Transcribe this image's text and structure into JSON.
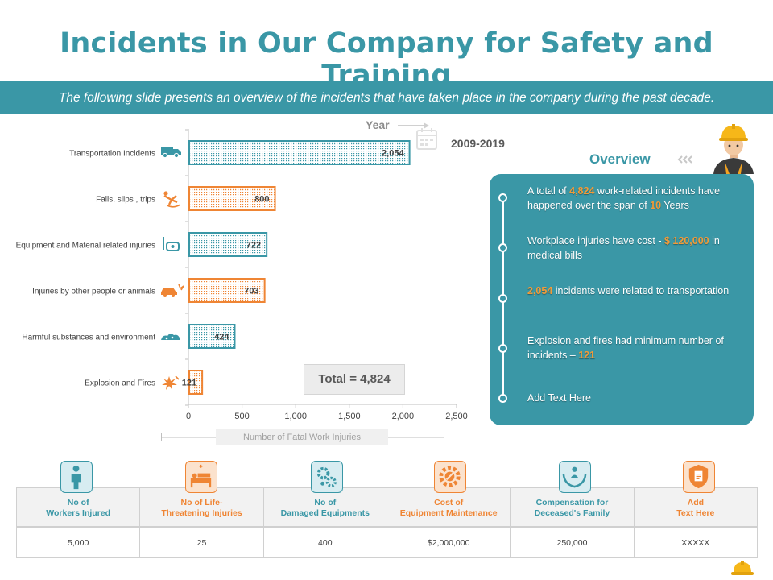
{
  "title": "Incidents in Our Company for Safety and Training",
  "subtitle": "The following slide presents an overview of the incidents that have taken place in the company during the past decade.",
  "year_label": "Year",
  "year_range": "2009-2019",
  "total_label": "Total = 4,824",
  "chart_data": {
    "type": "bar",
    "orientation": "horizontal",
    "categories": [
      "Transportation Incidents",
      "Falls, slips , trips",
      "Equipment and Material related injuries",
      "Injuries by other people or animals",
      "Harmful substances and environment",
      "Explosion and Fires"
    ],
    "values": [
      2054,
      800,
      722,
      703,
      424,
      121
    ],
    "value_labels": [
      "2,054",
      "800",
      "722",
      "703",
      "424",
      "121"
    ],
    "bar_colors": [
      "#3a97a6",
      "#ef8534",
      "#3a97a6",
      "#ef8534",
      "#3a97a6",
      "#ef8534"
    ],
    "icons": [
      "truck-icon",
      "falling-person-icon",
      "equipment-icon",
      "accident-car-icon",
      "hazard-cloud-icon",
      "explosion-icon"
    ],
    "xlabel": "Number of Fatal Work Injuries",
    "xlim": [
      0,
      2500
    ],
    "xticks": [
      0,
      500,
      1000,
      1500,
      2000,
      2500
    ],
    "xtick_labels": [
      "0",
      "500",
      "1,000",
      "1,500",
      "2,000",
      "2,500"
    ]
  },
  "overview": {
    "title": "Overview",
    "items": [
      {
        "pre": "A total of ",
        "hl": "4,824",
        "mid": " work-related incidents have happened over the span of ",
        "hl2": "10",
        "post": " Years"
      },
      {
        "pre": "Workplace injuries have cost - ",
        "hl": "$ 120,000",
        "mid": " in medical bills",
        "hl2": "",
        "post": ""
      },
      {
        "pre": "",
        "hl": "2,054",
        "mid": " incidents were related to transportation",
        "hl2": "",
        "post": ""
      },
      {
        "pre": "Explosion and fires had minimum number of incidents – ",
        "hl": "121",
        "mid": "",
        "hl2": "",
        "post": ""
      },
      {
        "pre": "Add Text Here",
        "hl": "",
        "mid": "",
        "hl2": "",
        "post": ""
      }
    ]
  },
  "table": {
    "headers": [
      {
        "line1": "No of",
        "line2": "Workers Injured",
        "color": "#3a97a6",
        "icon": "worker-icon"
      },
      {
        "line1": "No of Life-",
        "line2": "Threatening Injuries",
        "color": "#ef8534",
        "icon": "hospital-bed-icon"
      },
      {
        "line1": "No of",
        "line2": "Damaged Equipments",
        "color": "#3a97a6",
        "icon": "gears-icon"
      },
      {
        "line1": "Cost of",
        "line2": "Equipment Maintenance",
        "color": "#ef8534",
        "icon": "wrench-gear-icon"
      },
      {
        "line1": "Compensation for",
        "line2": "Deceased's Family",
        "color": "#3a97a6",
        "icon": "care-hands-icon"
      },
      {
        "line1": "Add",
        "line2": "Text Here",
        "color": "#ef8534",
        "icon": "shield-document-icon"
      }
    ],
    "values": [
      "5,000",
      "25",
      "400",
      "$2,000,000",
      "250,000",
      "XXXXX"
    ]
  }
}
